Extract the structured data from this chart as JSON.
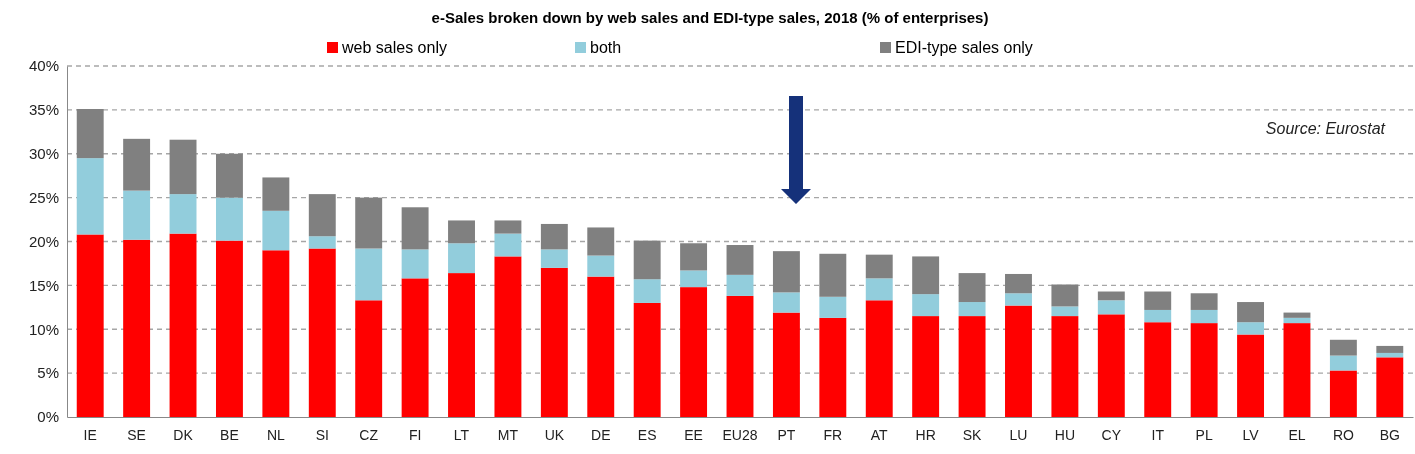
{
  "chart_data": {
    "type": "bar",
    "stacked": true,
    "title": "e-Sales broken down by web sales and EDI-type sales, 2018 (% of enterprises)",
    "categories": [
      "IE",
      "SE",
      "DK",
      "BE",
      "NL",
      "SI",
      "CZ",
      "FI",
      "LT",
      "MT",
      "UK",
      "DE",
      "ES",
      "EE",
      "EU28",
      "PT",
      "FR",
      "AT",
      "HR",
      "SK",
      "LU",
      "HU",
      "CY",
      "IT",
      "PL",
      "LV",
      "EL",
      "RO",
      "BG"
    ],
    "series": [
      {
        "name": "web sales only",
        "color": "#ff0000",
        "values": [
          20.8,
          20.2,
          20.9,
          20.1,
          19.0,
          19.2,
          13.3,
          15.8,
          16.4,
          18.3,
          17.0,
          16.0,
          13.0,
          14.8,
          13.8,
          11.9,
          11.3,
          13.3,
          11.5,
          11.5,
          12.7,
          11.5,
          11.7,
          10.8,
          10.7,
          9.4,
          10.7,
          5.3,
          6.8
        ]
      },
      {
        "name": "both",
        "color": "#92cddc",
        "values": [
          8.7,
          5.6,
          4.5,
          4.9,
          4.5,
          1.4,
          5.9,
          3.3,
          3.4,
          2.6,
          2.1,
          2.4,
          2.7,
          1.9,
          2.4,
          2.3,
          2.4,
          2.5,
          2.5,
          1.6,
          1.4,
          1.1,
          1.6,
          1.4,
          1.5,
          1.4,
          0.6,
          1.7,
          0.5
        ]
      },
      {
        "name": "EDI-type sales only",
        "color": "#808080",
        "values": [
          5.6,
          5.9,
          6.2,
          5.0,
          3.8,
          4.8,
          5.8,
          4.8,
          2.6,
          1.5,
          2.9,
          3.2,
          4.4,
          3.1,
          3.4,
          4.7,
          4.9,
          2.7,
          4.3,
          3.3,
          2.2,
          2.5,
          1.0,
          2.1,
          1.9,
          2.3,
          0.6,
          1.8,
          0.8
        ]
      }
    ],
    "ylim": [
      0,
      40
    ],
    "yticks": [
      {
        "value": 0,
        "label": "0%"
      },
      {
        "value": 5,
        "label": "5%"
      },
      {
        "value": 10,
        "label": "10%"
      },
      {
        "value": 15,
        "label": "15%"
      },
      {
        "value": 20,
        "label": "20%"
      },
      {
        "value": 25,
        "label": "25%"
      },
      {
        "value": 30,
        "label": "30%"
      },
      {
        "value": 35,
        "label": "35%"
      },
      {
        "value": 40,
        "label": "40%"
      }
    ],
    "grid": "y",
    "legend": "top",
    "annotations": [
      "Source: Eurostat"
    ]
  }
}
